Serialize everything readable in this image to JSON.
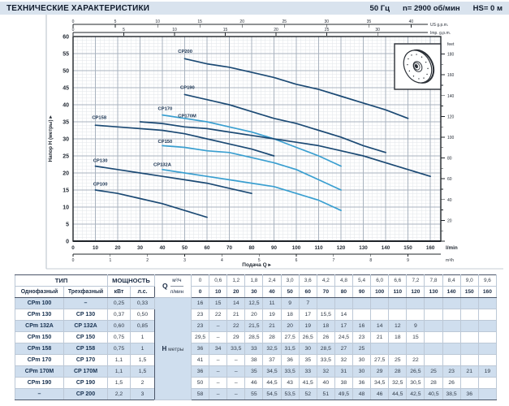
{
  "header": {
    "title": "ТЕХНИЧЕСКИЕ ХАРАКТЕРИСТИКИ",
    "frequency": "50 Гц",
    "speed": "n= 2900 об/мин",
    "suction": "HS= 0 м"
  },
  "chart_data": {
    "type": "line",
    "xlabel": "Подача Q ▸",
    "ylabel": "Напор H (метры) ▸",
    "x_unit_primary": "l/min",
    "x_unit_secondary": "m³/h",
    "xlim_lmin": [
      0,
      164.7
    ],
    "ylim_m": [
      0,
      60
    ],
    "y_ticks_m": [
      0,
      5,
      10,
      15,
      20,
      25,
      30,
      35,
      40,
      45,
      50,
      55,
      60
    ],
    "x_ticks_lmin": [
      0,
      10,
      20,
      30,
      40,
      50,
      60,
      70,
      80,
      90,
      100,
      110,
      120,
      130,
      140,
      150,
      160
    ],
    "x_ticks_m3h": [
      0,
      1,
      2,
      3,
      4,
      5,
      6,
      7,
      8,
      9
    ],
    "top_axis_us": {
      "label": "US g.p.m.",
      "ticks": [
        0,
        5,
        10,
        15,
        20,
        25,
        30,
        35,
        40
      ],
      "lmin_per_unit": 3.785
    },
    "top_axis_imp": {
      "label": "Imp. g.p.m.",
      "ticks": [
        0,
        5,
        10,
        15,
        20,
        25,
        30
      ],
      "lmin_per_unit": 4.546
    },
    "right_axis": {
      "label": "feet",
      "ticks": [
        0,
        20,
        40,
        60,
        80,
        100,
        120,
        140,
        160,
        180
      ],
      "minor_step": 10,
      "m_per_unit": 0.3048
    },
    "grid": {
      "minor_x_lmin": 2,
      "minor_y_m": 1,
      "major_x_lmin": 10,
      "major_y_m": 5
    },
    "colors": {
      "navy": "#1c4a74",
      "cyan": "#3a9fd0",
      "label": "#16304f",
      "grid_minor": "#e2e5ea",
      "grid_major": "#a9b3bf",
      "axis": "#1f2429"
    },
    "series": [
      {
        "name": "CP100",
        "color": "navy",
        "label_at": [
          9,
          16.3
        ],
        "points": [
          [
            10,
            15
          ],
          [
            20,
            14
          ],
          [
            30,
            12.5
          ],
          [
            40,
            11
          ],
          [
            50,
            9
          ],
          [
            60,
            7
          ]
        ]
      },
      {
        "name": "CP130",
        "color": "navy",
        "label_at": [
          9,
          23.2
        ],
        "points": [
          [
            10,
            22
          ],
          [
            20,
            21
          ],
          [
            30,
            20
          ],
          [
            40,
            19
          ],
          [
            50,
            18
          ],
          [
            60,
            17
          ],
          [
            70,
            15.5
          ],
          [
            80,
            14
          ]
        ]
      },
      {
        "name": "CP132A",
        "color": "cyan",
        "label_at": [
          36,
          22
        ],
        "points": [
          [
            40,
            21
          ],
          [
            50,
            20
          ],
          [
            60,
            19
          ],
          [
            70,
            18
          ],
          [
            80,
            17
          ],
          [
            90,
            16
          ],
          [
            100,
            14
          ],
          [
            110,
            12
          ],
          [
            120,
            9
          ]
        ]
      },
      {
        "name": "CP150",
        "color": "cyan",
        "label_at": [
          38,
          28.8
        ],
        "points": [
          [
            40,
            28
          ],
          [
            50,
            27.5
          ],
          [
            60,
            26.5
          ],
          [
            70,
            26
          ],
          [
            80,
            24.5
          ],
          [
            90,
            23
          ],
          [
            100,
            21
          ],
          [
            110,
            18
          ],
          [
            120,
            15
          ]
        ]
      },
      {
        "name": "CP158",
        "color": "navy",
        "label_at": [
          8.5,
          35.8
        ],
        "points": [
          [
            10,
            34
          ],
          [
            20,
            33.5
          ],
          [
            30,
            33
          ],
          [
            40,
            32.5
          ],
          [
            50,
            31.5
          ],
          [
            60,
            30
          ],
          [
            70,
            28.5
          ],
          [
            80,
            27
          ],
          [
            90,
            25
          ]
        ]
      },
      {
        "name": "CP170",
        "color": "cyan",
        "label_at": [
          38,
          38.4
        ],
        "points": [
          [
            40,
            37
          ],
          [
            50,
            36
          ],
          [
            60,
            35
          ],
          [
            70,
            33.5
          ],
          [
            80,
            32
          ],
          [
            90,
            30
          ],
          [
            100,
            27.5
          ],
          [
            110,
            25
          ],
          [
            120,
            22
          ]
        ]
      },
      {
        "name": "CP170M",
        "color": "navy",
        "label_at": [
          47,
          36.3
        ],
        "points": [
          [
            30,
            35
          ],
          [
            40,
            34.5
          ],
          [
            50,
            33.5
          ],
          [
            60,
            33
          ],
          [
            70,
            32
          ],
          [
            80,
            31
          ],
          [
            90,
            30
          ],
          [
            100,
            29
          ],
          [
            110,
            28
          ],
          [
            120,
            26.5
          ],
          [
            130,
            25
          ],
          [
            140,
            23
          ],
          [
            150,
            21
          ],
          [
            160,
            19
          ]
        ]
      },
      {
        "name": "CP190",
        "color": "navy",
        "label_at": [
          48,
          44.6
        ],
        "points": [
          [
            50,
            43
          ],
          [
            60,
            41.5
          ],
          [
            70,
            40
          ],
          [
            80,
            38
          ],
          [
            90,
            36
          ],
          [
            100,
            34.5
          ],
          [
            110,
            32.5
          ],
          [
            120,
            30.5
          ],
          [
            130,
            28
          ],
          [
            140,
            26
          ]
        ]
      },
      {
        "name": "CP200",
        "color": "navy",
        "label_at": [
          47,
          55.2
        ],
        "points": [
          [
            50,
            53.5
          ],
          [
            60,
            52
          ],
          [
            70,
            51
          ],
          [
            80,
            49.5
          ],
          [
            90,
            48
          ],
          [
            100,
            46
          ],
          [
            110,
            44.5
          ],
          [
            120,
            42.5
          ],
          [
            130,
            40.5
          ],
          [
            140,
            38.5
          ],
          [
            150,
            36
          ]
        ]
      }
    ]
  },
  "table": {
    "type_header": "ТИП",
    "power_header": "МОЩНОСТЬ",
    "col_single": "Однофазный",
    "col_three": "Трехфазный",
    "col_kw": "кВт",
    "col_hp": "л.с.",
    "q_label": "Q",
    "q_unit_top": "м³/ч",
    "q_unit_bottom": "л/мин",
    "h_label": "Н",
    "h_unit": "метры",
    "m3h": [
      "0",
      "0,6",
      "1,2",
      "1,8",
      "2,4",
      "3,0",
      "3,6",
      "4,2",
      "4,8",
      "5,4",
      "6,0",
      "6,6",
      "7,2",
      "7,8",
      "8,4",
      "9,0",
      "9,6"
    ],
    "lmin": [
      "0",
      "10",
      "20",
      "30",
      "40",
      "50",
      "60",
      "70",
      "80",
      "90",
      "100",
      "110",
      "120",
      "130",
      "140",
      "150",
      "160"
    ],
    "rows": [
      {
        "single": "CPm 100",
        "three": "–",
        "kw": "0,25",
        "hp": "0,33",
        "h": [
          "16",
          "15",
          "14",
          "12,5",
          "11",
          "9",
          "7",
          "",
          "",
          "",
          "",
          "",
          "",
          "",
          "",
          "",
          ""
        ]
      },
      {
        "single": "CPm 130",
        "three": "CP 130",
        "kw": "0,37",
        "hp": "0,50",
        "h": [
          "23",
          "22",
          "21",
          "20",
          "19",
          "18",
          "17",
          "15,5",
          "14",
          "",
          "",
          "",
          "",
          "",
          "",
          "",
          ""
        ]
      },
      {
        "single": "CPm 132A",
        "three": "CP 132A",
        "kw": "0,60",
        "hp": "0,85",
        "h": [
          "23",
          "–",
          "22",
          "21,5",
          "21",
          "20",
          "19",
          "18",
          "17",
          "16",
          "14",
          "12",
          "9",
          "",
          "",
          "",
          ""
        ]
      },
      {
        "single": "CPm 150",
        "three": "CP 150",
        "kw": "0,75",
        "hp": "1",
        "h": [
          "29,5",
          "–",
          "29",
          "28,5",
          "28",
          "27,5",
          "26,5",
          "26",
          "24,5",
          "23",
          "21",
          "18",
          "15",
          "",
          "",
          "",
          ""
        ]
      },
      {
        "single": "CPm 158",
        "three": "CP 158",
        "kw": "0,75",
        "hp": "1",
        "h": [
          "36",
          "34",
          "33,5",
          "33",
          "32,5",
          "31,5",
          "30",
          "28,5",
          "27",
          "25",
          "",
          "",
          "",
          "",
          "",
          "",
          ""
        ]
      },
      {
        "single": "CPm 170",
        "three": "CP 170",
        "kw": "1,1",
        "hp": "1,5",
        "h": [
          "41",
          "–",
          "–",
          "38",
          "37",
          "36",
          "35",
          "33,5",
          "32",
          "30",
          "27,5",
          "25",
          "22",
          "",
          "",
          "",
          ""
        ]
      },
      {
        "single": "CPm 170M",
        "three": "CP 170M",
        "kw": "1,1",
        "hp": "1,5",
        "h": [
          "36",
          "–",
          "–",
          "35",
          "34,5",
          "33,5",
          "33",
          "32",
          "31",
          "30",
          "29",
          "28",
          "26,5",
          "25",
          "23",
          "21",
          "19"
        ]
      },
      {
        "single": "CPm 190",
        "three": "CP 190",
        "kw": "1,5",
        "hp": "2",
        "h": [
          "50",
          "–",
          "–",
          "46",
          "44,5",
          "43",
          "41,5",
          "40",
          "38",
          "36",
          "34,5",
          "32,5",
          "30,5",
          "28",
          "26",
          "",
          ""
        ]
      },
      {
        "single": "–",
        "three": "CP 200",
        "kw": "2,2",
        "hp": "3",
        "h": [
          "58",
          "–",
          "–",
          "55",
          "54,5",
          "53,5",
          "52",
          "51",
          "49,5",
          "48",
          "46",
          "44,5",
          "42,5",
          "40,5",
          "38,5",
          "36",
          ""
        ]
      }
    ]
  }
}
